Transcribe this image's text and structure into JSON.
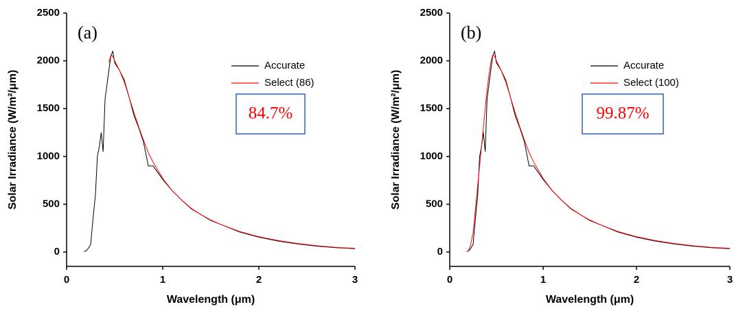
{
  "chart_data": [
    {
      "type": "line",
      "panel_label": "(a)",
      "annotation": "84.7%",
      "x_label": "Wavelength (μm)",
      "y_label": "Solar Irradiance (W/m²/μm)",
      "xlim": [
        0,
        3
      ],
      "ylim": [
        -150,
        2500
      ],
      "xticks": [
        0,
        1,
        2,
        3
      ],
      "yticks": [
        0,
        500,
        1000,
        1500,
        2000,
        2500
      ],
      "x": [
        0.18,
        0.2,
        0.22,
        0.25,
        0.28,
        0.3,
        0.32,
        0.34,
        0.36,
        0.38,
        0.4,
        0.42,
        0.44,
        0.46,
        0.48,
        0.5,
        0.55,
        0.6,
        0.65,
        0.7,
        0.75,
        0.8,
        0.85,
        0.9,
        1.0,
        1.1,
        1.2,
        1.3,
        1.4,
        1.5,
        1.6,
        1.8,
        2.0,
        2.2,
        2.4,
        2.6,
        2.8,
        3.0
      ],
      "series": [
        {
          "name": "Accurate",
          "color": "#000000",
          "values": [
            5,
            10,
            30,
            80,
            400,
            600,
            1000,
            1100,
            1250,
            1050,
            1600,
            1750,
            1900,
            2050,
            2100,
            1980,
            1900,
            1800,
            1620,
            1430,
            1300,
            1150,
            900,
            900,
            760,
            640,
            540,
            450,
            390,
            330,
            290,
            210,
            155,
            115,
            85,
            62,
            46,
            35
          ]
        },
        {
          "name": "Select (86)",
          "color": "#ff0000",
          "values": [
            null,
            null,
            null,
            null,
            null,
            null,
            null,
            null,
            null,
            null,
            null,
            null,
            1980,
            2060,
            2050,
            2000,
            1900,
            1780,
            1620,
            1460,
            1310,
            1170,
            1040,
            940,
            770,
            640,
            540,
            455,
            390,
            335,
            290,
            215,
            160,
            120,
            90,
            66,
            50,
            38
          ]
        }
      ]
    },
    {
      "type": "line",
      "panel_label": "(b)",
      "annotation": "99.87%",
      "x_label": "Wavelength (μm)",
      "y_label": "Solar Irradiance (W/m²/μm)",
      "xlim": [
        0,
        3
      ],
      "ylim": [
        -150,
        2500
      ],
      "xticks": [
        0,
        1,
        2,
        3
      ],
      "yticks": [
        0,
        500,
        1000,
        1500,
        2000,
        2500
      ],
      "x": [
        0.18,
        0.2,
        0.22,
        0.25,
        0.28,
        0.3,
        0.32,
        0.34,
        0.36,
        0.38,
        0.4,
        0.42,
        0.44,
        0.46,
        0.48,
        0.5,
        0.55,
        0.6,
        0.65,
        0.7,
        0.75,
        0.8,
        0.85,
        0.9,
        1.0,
        1.1,
        1.2,
        1.3,
        1.4,
        1.5,
        1.6,
        1.8,
        2.0,
        2.2,
        2.4,
        2.6,
        2.8,
        3.0
      ],
      "series": [
        {
          "name": "Accurate",
          "color": "#000000",
          "values": [
            5,
            10,
            30,
            80,
            400,
            600,
            1000,
            1100,
            1250,
            1050,
            1600,
            1750,
            1900,
            2050,
            2100,
            1980,
            1900,
            1800,
            1620,
            1430,
            1300,
            1150,
            900,
            900,
            760,
            640,
            540,
            450,
            390,
            330,
            290,
            210,
            155,
            115,
            85,
            62,
            46,
            35
          ]
        },
        {
          "name": "Select (100)",
          "color": "#ff0000",
          "values": [
            null,
            20,
            60,
            200,
            500,
            700,
            900,
            1100,
            1300,
            1500,
            1700,
            1850,
            1980,
            2060,
            2050,
            2000,
            1900,
            1780,
            1620,
            1460,
            1310,
            1170,
            1040,
            940,
            770,
            640,
            540,
            455,
            390,
            335,
            290,
            215,
            160,
            120,
            90,
            66,
            50,
            38
          ]
        }
      ]
    }
  ]
}
